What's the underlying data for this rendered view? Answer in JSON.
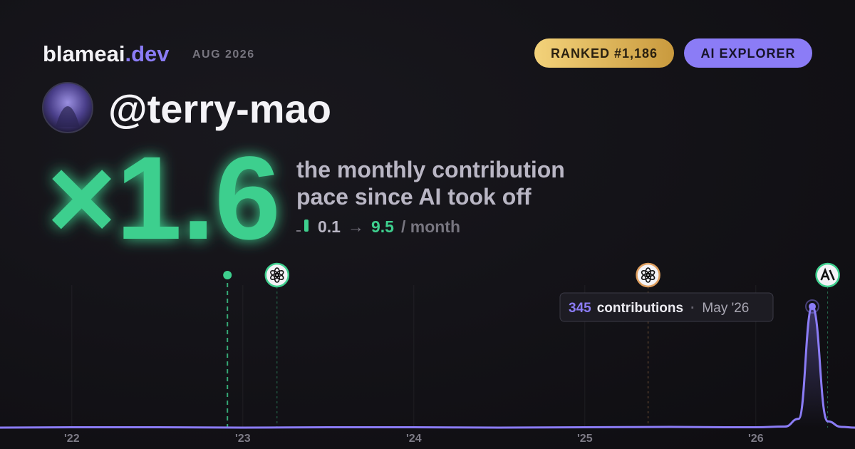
{
  "header": {
    "brand": "blameai",
    "brand_suffix": ".dev",
    "date": "AUG 2026",
    "badges": [
      "RANKED #1,186",
      "AI EXPLORER"
    ]
  },
  "profile": {
    "username": "@terry-mao"
  },
  "stat": {
    "multiplier": "×1.6",
    "caption": [
      "the monthly contribution",
      "pace since AI took off"
    ],
    "from": "0.1",
    "arrow": "→",
    "to": "9.5",
    "unit": "/ month"
  },
  "chart": {
    "type": "area",
    "color": "#8b7cf6",
    "x": [
      2021.58,
      2022.0,
      2022.5,
      2023.0,
      2023.5,
      2024.0,
      2024.5,
      2025.0,
      2025.5,
      2025.83,
      2026.0,
      2026.17,
      2026.25,
      2026.33,
      2026.42,
      2026.5,
      2026.58
    ],
    "values": [
      0,
      1,
      1,
      0,
      1,
      1,
      0,
      1,
      2,
      1,
      1,
      3,
      25,
      345,
      18,
      2,
      0
    ],
    "xlim": [
      2021.58,
      2026.58
    ],
    "ylim": [
      0,
      345
    ],
    "xticks": [
      {
        "value": 2022,
        "label": "'22"
      },
      {
        "value": 2023,
        "label": "'23"
      },
      {
        "value": 2024,
        "label": "'24"
      },
      {
        "value": 2025,
        "label": "'25"
      },
      {
        "value": 2026,
        "label": "'26"
      }
    ],
    "grid": true,
    "events": [
      {
        "x": 2022.91,
        "icon": "dot",
        "color": "#3ecf8e"
      },
      {
        "x": 2023.2,
        "icon": "openai",
        "color": "#3ecf8e"
      },
      {
        "x": 2025.37,
        "icon": "openai",
        "color": "#e0a060"
      },
      {
        "x": 2026.42,
        "icon": "anthropic",
        "color": "#3ecf8e"
      }
    ],
    "tooltip": {
      "label": "contributions",
      "separator": "·",
      "date": "May '26"
    }
  }
}
